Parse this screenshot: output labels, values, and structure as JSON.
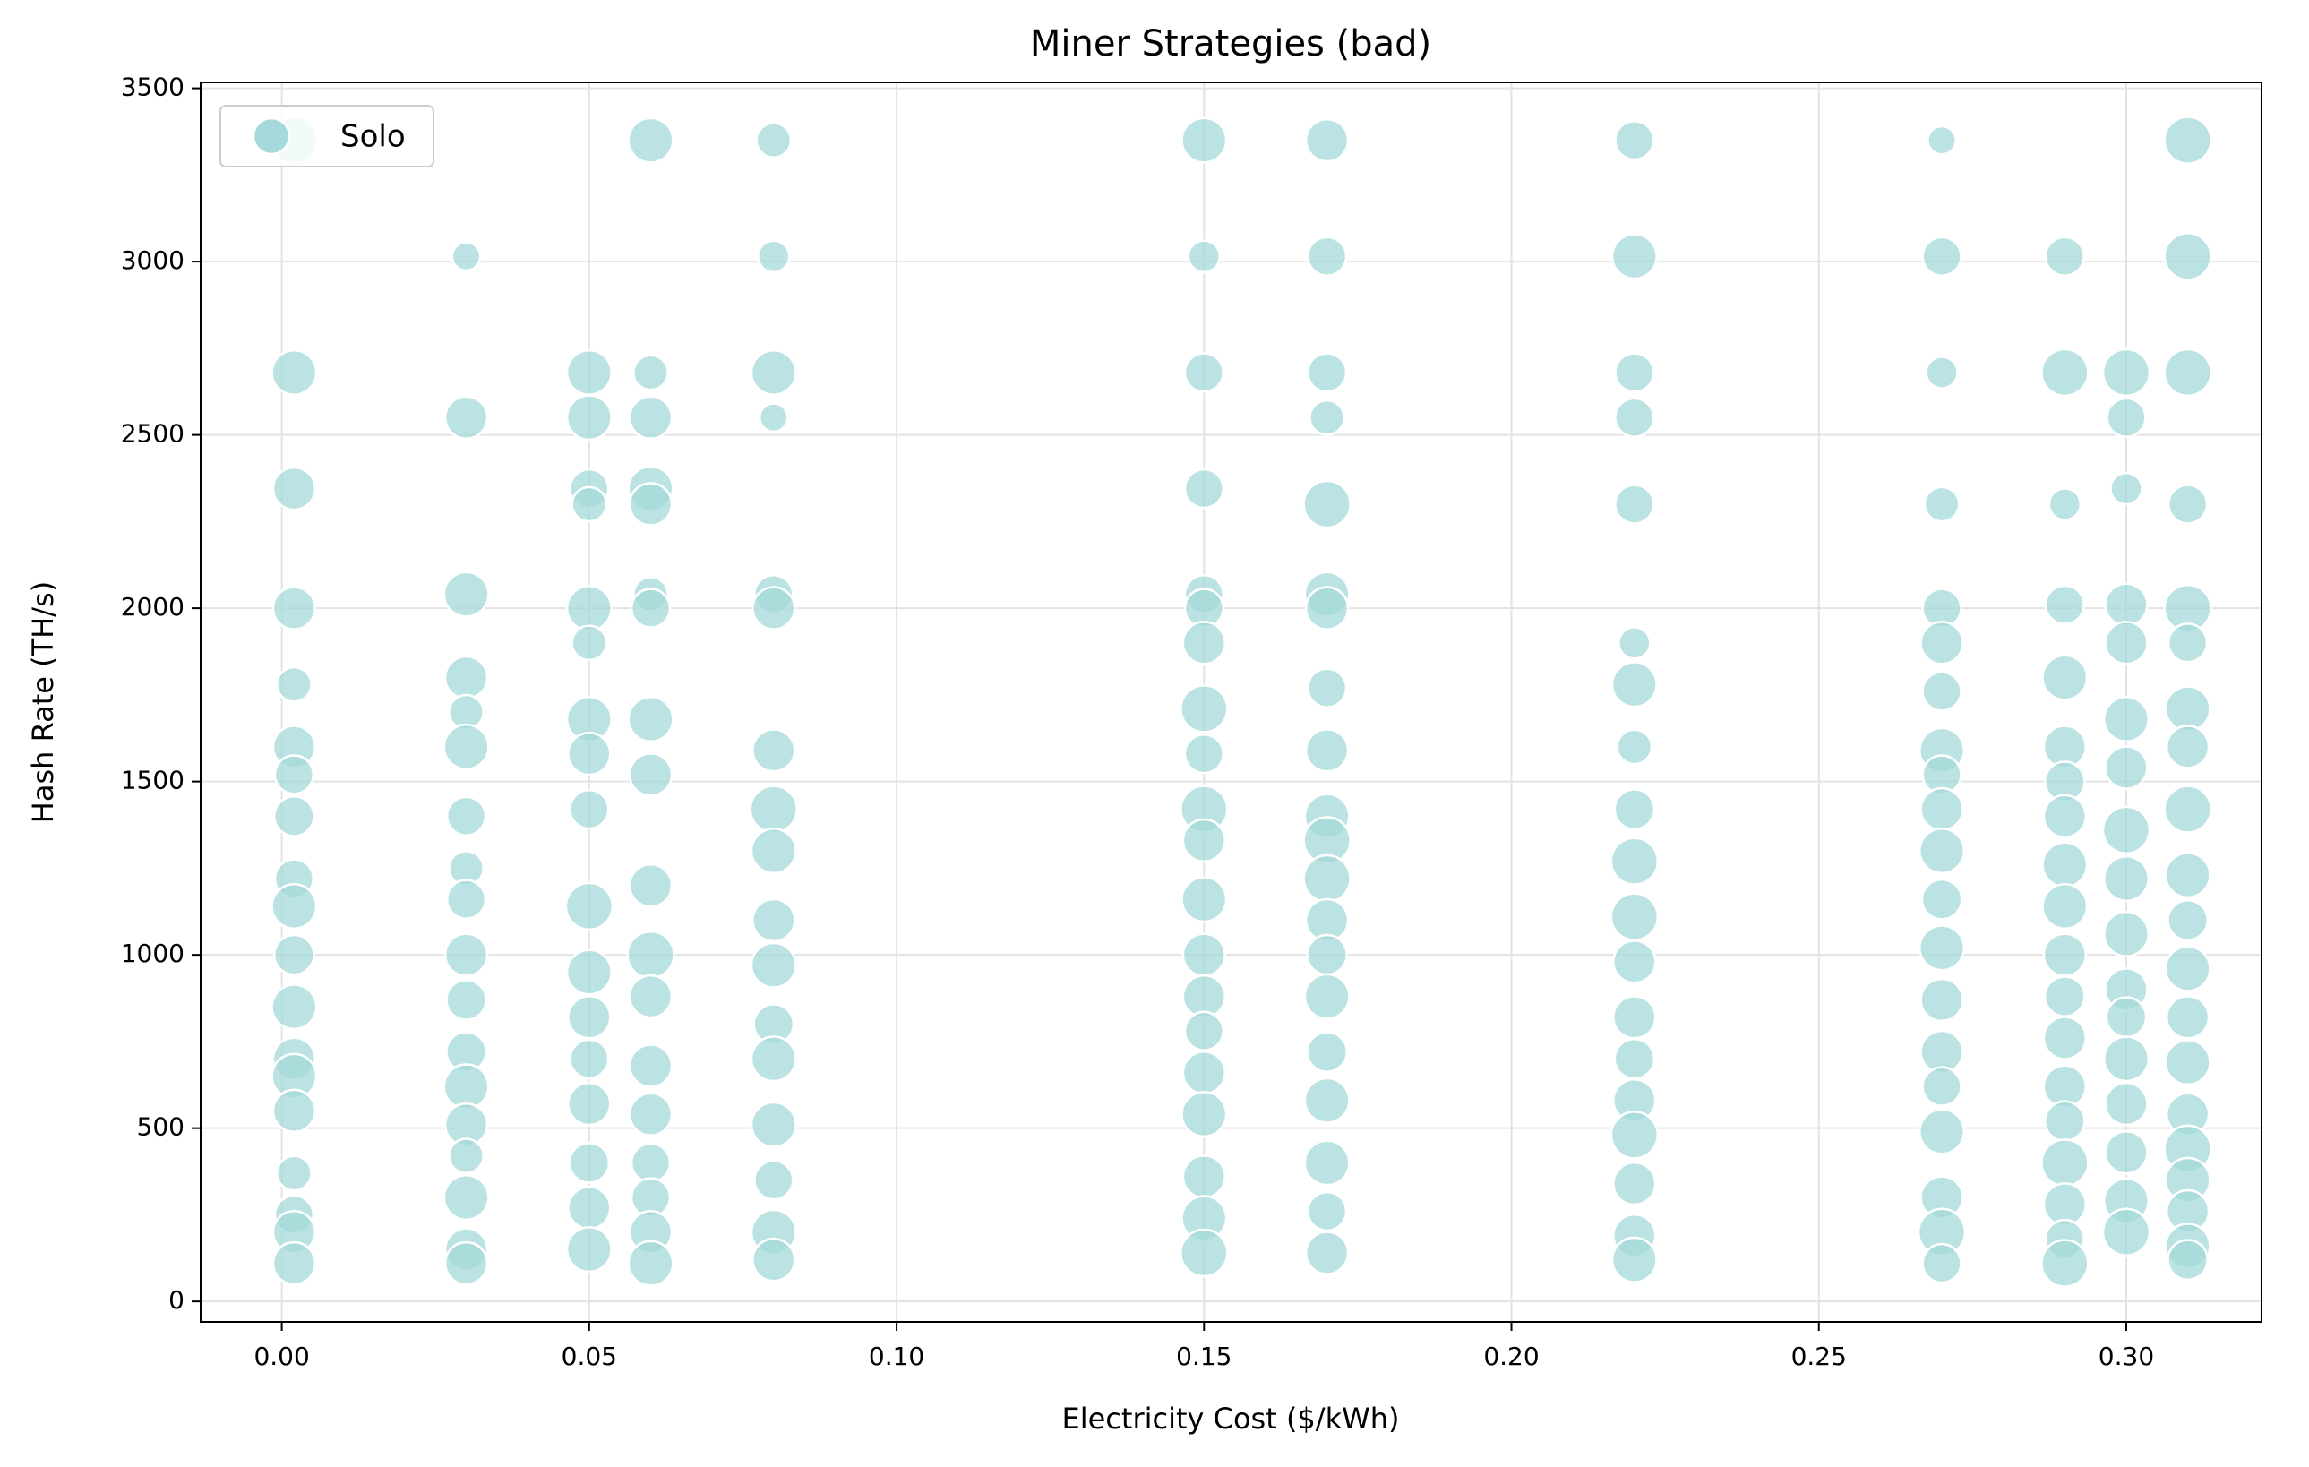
{
  "chart_data": {
    "type": "scatter",
    "title": "Miner Strategies (bad)",
    "x_label": "Electricity Cost ($/kWh)",
    "y_label": "Hash Rate (TH/s)",
    "xlim": [
      -0.0132,
      0.322
    ],
    "ylim": [
      -59,
      3517
    ],
    "xticks": [
      {
        "value": 0,
        "label": "0.00"
      },
      0.05,
      {
        "value": 0.1,
        "label": "0.10"
      },
      0.15,
      {
        "value": 0.2,
        "label": "0.20"
      },
      0.25,
      {
        "value": 0.3,
        "label": "0.30"
      }
    ],
    "yticks": [
      0,
      500,
      1000,
      1500,
      2000,
      2500,
      3000,
      3500
    ],
    "grid": true,
    "legend": "upper left",
    "x": [
      0.002,
      0.002,
      0.002,
      0.002,
      0.002,
      0.002,
      0.002,
      0.002,
      0.002,
      0.002,
      0.002,
      0.002,
      0.002,
      0.002,
      0.002,
      0.002,
      0.002,
      0.002,
      0.002,
      0.03,
      0.03,
      0.03,
      0.03,
      0.03,
      0.03,
      0.03,
      0.03,
      0.03,
      0.03,
      0.03,
      0.03,
      0.03,
      0.03,
      0.03,
      0.03,
      0.03,
      0.03,
      0.05,
      0.05,
      0.05,
      0.05,
      0.05,
      0.05,
      0.05,
      0.05,
      0.05,
      0.05,
      0.05,
      0.05,
      0.05,
      0.05,
      0.05,
      0.05,
      0.05,
      0.06,
      0.06,
      0.06,
      0.06,
      0.06,
      0.06,
      0.06,
      0.06,
      0.06,
      0.06,
      0.06,
      0.06,
      0.06,
      0.06,
      0.06,
      0.06,
      0.06,
      0.06,
      0.08,
      0.08,
      0.08,
      0.08,
      0.08,
      0.08,
      0.08,
      0.08,
      0.08,
      0.08,
      0.08,
      0.08,
      0.08,
      0.08,
      0.08,
      0.08,
      0.08,
      0.15,
      0.15,
      0.15,
      0.15,
      0.15,
      0.15,
      0.15,
      0.15,
      0.15,
      0.15,
      0.15,
      0.15,
      0.15,
      0.15,
      0.15,
      0.15,
      0.15,
      0.15,
      0.15,
      0.15,
      0.17,
      0.17,
      0.17,
      0.17,
      0.17,
      0.17,
      0.17,
      0.17,
      0.17,
      0.17,
      0.17,
      0.17,
      0.17,
      0.17,
      0.17,
      0.17,
      0.17,
      0.17,
      0.17,
      0.17,
      0.22,
      0.22,
      0.22,
      0.22,
      0.22,
      0.22,
      0.22,
      0.22,
      0.22,
      0.22,
      0.22,
      0.22,
      0.22,
      0.22,
      0.22,
      0.22,
      0.22,
      0.22,
      0.22,
      0.27,
      0.27,
      0.27,
      0.27,
      0.27,
      0.27,
      0.27,
      0.27,
      0.27,
      0.27,
      0.27,
      0.27,
      0.27,
      0.27,
      0.27,
      0.27,
      0.27,
      0.27,
      0.27,
      0.27,
      0.29,
      0.29,
      0.29,
      0.29,
      0.29,
      0.29,
      0.29,
      0.29,
      0.29,
      0.29,
      0.29,
      0.29,
      0.29,
      0.29,
      0.29,
      0.29,
      0.29,
      0.29,
      0.29,
      0.3,
      0.3,
      0.3,
      0.3,
      0.3,
      0.3,
      0.3,
      0.3,
      0.3,
      0.3,
      0.3,
      0.3,
      0.3,
      0.3,
      0.3,
      0.3,
      0.3,
      0.31,
      0.31,
      0.31,
      0.31,
      0.31,
      0.31,
      0.31,
      0.31,
      0.31,
      0.31,
      0.31,
      0.31,
      0.31,
      0.31,
      0.31,
      0.31,
      0.31,
      0.31,
      0.31,
      0.31
    ],
    "series": [
      {
        "name": "Solo",
        "color": "#a6d9da",
        "values": [
          3350,
          2680,
          2345,
          2000,
          1780,
          1600,
          1520,
          1400,
          1220,
          1140,
          1000,
          850,
          700,
          650,
          550,
          370,
          250,
          200,
          110,
          3015,
          2550,
          2040,
          1800,
          1700,
          1600,
          1400,
          1250,
          1160,
          1000,
          870,
          720,
          620,
          510,
          420,
          300,
          150,
          110,
          2680,
          2550,
          2345,
          2300,
          2000,
          1900,
          1680,
          1580,
          1420,
          1140,
          950,
          820,
          700,
          570,
          400,
          270,
          150,
          3350,
          2680,
          2550,
          2345,
          2300,
          2040,
          2000,
          1680,
          1520,
          1200,
          1000,
          880,
          680,
          540,
          400,
          300,
          200,
          110,
          3350,
          3015,
          2680,
          2550,
          2040,
          2000,
          1590,
          1420,
          1300,
          1100,
          970,
          800,
          700,
          510,
          350,
          200,
          120,
          3350,
          3015,
          2680,
          2345,
          2040,
          2000,
          1900,
          1710,
          1580,
          1420,
          1330,
          1160,
          1000,
          880,
          780,
          660,
          540,
          360,
          240,
          140,
          3350,
          3015,
          2680,
          2550,
          2300,
          2040,
          2000,
          1770,
          1590,
          1400,
          1330,
          1220,
          1100,
          1000,
          880,
          720,
          580,
          400,
          260,
          140,
          3350,
          3015,
          2680,
          2550,
          2300,
          1900,
          1780,
          1600,
          1420,
          1270,
          1110,
          980,
          820,
          700,
          580,
          480,
          340,
          190,
          120,
          3350,
          3015,
          2680,
          2300,
          2000,
          1900,
          1760,
          1590,
          1520,
          1420,
          1300,
          1160,
          1020,
          870,
          720,
          620,
          490,
          300,
          200,
          110,
          3015,
          2680,
          2300,
          2010,
          1800,
          1600,
          1500,
          1400,
          1260,
          1140,
          1000,
          880,
          760,
          620,
          520,
          400,
          280,
          180,
          110,
          2680,
          2550,
          2345,
          2010,
          1900,
          1680,
          1540,
          1360,
          1220,
          1060,
          900,
          820,
          700,
          570,
          430,
          290,
          200,
          3350,
          3015,
          2680,
          2300,
          2000,
          1900,
          1710,
          1600,
          1420,
          1230,
          1100,
          960,
          820,
          690,
          540,
          440,
          350,
          260,
          160,
          120
        ],
        "sizes": [
          220,
          200,
          180,
          180,
          120,
          180,
          150,
          160,
          150,
          200,
          160,
          200,
          180,
          200,
          180,
          120,
          150,
          180,
          180,
          80,
          180,
          200,
          180,
          120,
          200,
          150,
          120,
          150,
          180,
          160,
          160,
          200,
          180,
          120,
          200,
          180,
          180,
          200,
          200,
          150,
          120,
          200,
          120,
          200,
          180,
          150,
          220,
          200,
          180,
          150,
          180,
          160,
          180,
          200,
          200,
          120,
          180,
          200,
          180,
          120,
          150,
          200,
          180,
          180,
          220,
          180,
          180,
          180,
          150,
          150,
          180,
          200,
          120,
          100,
          200,
          80,
          150,
          180,
          180,
          220,
          200,
          180,
          200,
          160,
          200,
          200,
          150,
          200,
          180,
          200,
          100,
          150,
          150,
          150,
          150,
          180,
          220,
          150,
          220,
          180,
          200,
          180,
          180,
          150,
          180,
          200,
          180,
          200,
          220,
          180,
          150,
          150,
          120,
          220,
          200,
          180,
          150,
          180,
          200,
          220,
          220,
          180,
          160,
          200,
          160,
          200,
          200,
          150,
          180,
          150,
          200,
          150,
          150,
          150,
          100,
          200,
          120,
          160,
          220,
          220,
          180,
          180,
          160,
          180,
          220,
          180,
          180,
          200,
          80,
          150,
          100,
          120,
          150,
          180,
          150,
          200,
          150,
          180,
          200,
          160,
          200,
          180,
          180,
          150,
          200,
          180,
          220,
          150,
          150,
          220,
          100,
          150,
          200,
          180,
          160,
          180,
          200,
          200,
          180,
          160,
          180,
          180,
          160,
          220,
          180,
          150,
          220,
          220,
          150,
          100,
          180,
          180,
          200,
          180,
          220,
          200,
          200,
          180,
          160,
          200,
          180,
          180,
          200,
          220,
          220,
          220,
          220,
          150,
          220,
          150,
          200,
          180,
          220,
          200,
          160,
          200,
          180,
          200,
          180,
          220,
          200,
          180,
          200,
          160
        ]
      }
    ]
  }
}
